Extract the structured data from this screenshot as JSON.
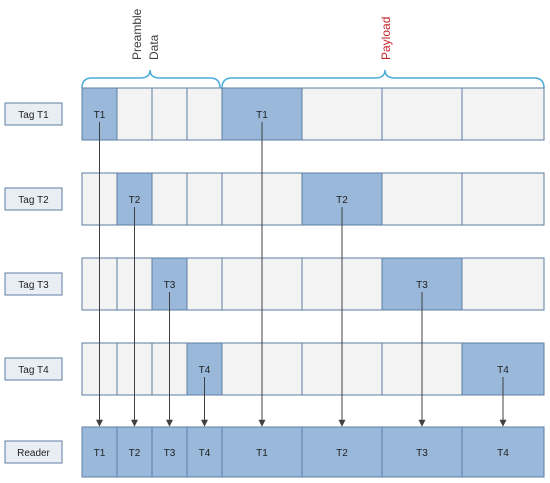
{
  "header": {
    "preamble_line1": "Preamble",
    "preamble_line2": "Data",
    "payload_label": "Payload"
  },
  "colors": {
    "filled": "#9ab8d9",
    "empty": "#f3f3f3",
    "stroke": "#5d7ea3",
    "label_bg": "#e9eef5",
    "brace": "#4bacd8",
    "payload_text": "#c0262b",
    "arrow": "#404040"
  },
  "rows": [
    {
      "label": "Tag T1",
      "active_slot": 0,
      "slot_text": "T1"
    },
    {
      "label": "Tag T2",
      "active_slot": 1,
      "slot_text": "T2"
    },
    {
      "label": "Tag T3",
      "active_slot": 2,
      "slot_text": "T3"
    },
    {
      "label": "Tag T4",
      "active_slot": 3,
      "slot_text": "T4"
    }
  ],
  "reader": {
    "label": "Reader",
    "slots": [
      "T1",
      "T2",
      "T3",
      "T4",
      "T1",
      "T2",
      "T3",
      "T4"
    ]
  }
}
